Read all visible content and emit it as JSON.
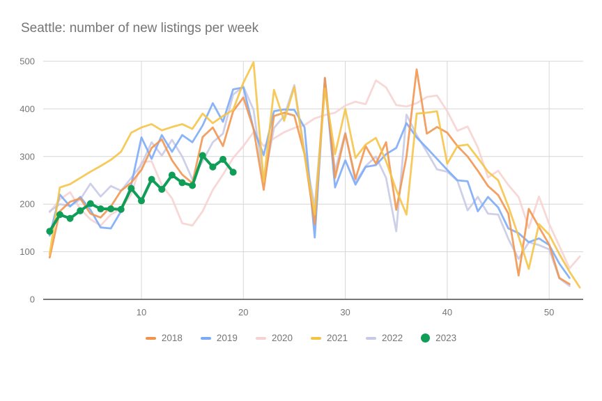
{
  "chart_data": {
    "type": "line",
    "title": "Seattle: number of new listings per week",
    "xlabel": "",
    "ylabel": "",
    "grid": true,
    "legend_position": "bottom",
    "x_axis": {
      "ticks": [
        10,
        20,
        30,
        40,
        50
      ],
      "range": [
        1,
        53
      ],
      "unit": "week"
    },
    "y_axis": {
      "ticks": [
        0,
        100,
        200,
        300,
        400,
        500
      ],
      "range": [
        0,
        500
      ]
    },
    "weeks_start_at": 1,
    "series": [
      {
        "name": "2018",
        "color": "#f0944d",
        "style": "line",
        "values": [
          88,
          185,
          205,
          212,
          180,
          172,
          195,
          228,
          245,
          272,
          318,
          336,
          292,
          262,
          244,
          341,
          361,
          322,
          395,
          424,
          358,
          230,
          385,
          392,
          386,
          305,
          158,
          465,
          255,
          348,
          253,
          322,
          285,
          330,
          188,
          300,
          483,
          348,
          362,
          350,
          322,
          300,
          270,
          238,
          219,
          180,
          50,
          190,
          152,
          115,
          45,
          32
        ]
      },
      {
        "name": "2019",
        "color": "#7baaf7",
        "style": "line",
        "values": [
          134,
          220,
          195,
          215,
          188,
          151,
          149,
          185,
          240,
          340,
          295,
          345,
          310,
          345,
          330,
          365,
          412,
          373,
          441,
          445,
          358,
          303,
          395,
          399,
          398,
          361,
          130,
          465,
          235,
          292,
          241,
          278,
          282,
          305,
          318,
          370,
          340,
          318,
          295,
          272,
          250,
          248,
          185,
          215,
          193,
          149,
          139,
          120,
          128,
          114,
          75,
          45
        ]
      },
      {
        "name": "2020",
        "color": "#f6d3d0",
        "style": "line",
        "values": [
          183,
          210,
          225,
          190,
          168,
          155,
          178,
          190,
          220,
          288,
          290,
          240,
          212,
          160,
          155,
          185,
          230,
          262,
          297,
          322,
          351,
          322,
          338,
          351,
          360,
          366,
          380,
          387,
          392,
          407,
          415,
          410,
          460,
          445,
          408,
          405,
          412,
          425,
          428,
          395,
          354,
          363,
          319,
          256,
          270,
          240,
          215,
          150,
          216,
          158,
          112,
          65,
          90
        ]
      },
      {
        "name": "2021",
        "color": "#f5c344",
        "style": "line",
        "values": [
          95,
          235,
          242,
          255,
          268,
          280,
          293,
          310,
          350,
          361,
          368,
          355,
          362,
          368,
          358,
          390,
          370,
          385,
          398,
          455,
          498,
          247,
          440,
          375,
          446,
          303,
          178,
          443,
          305,
          400,
          297,
          325,
          339,
          290,
          230,
          178,
          390,
          392,
          395,
          285,
          322,
          325,
          297,
          268,
          250,
          195,
          132,
          64,
          158,
          136,
          95,
          58,
          25
        ]
      },
      {
        "name": "2022",
        "color": "#c7cae6",
        "style": "line",
        "values": [
          185,
          200,
          196,
          210,
          243,
          216,
          238,
          228,
          255,
          283,
          330,
          302,
          335,
          300,
          252,
          290,
          330,
          348,
          430,
          447,
          398,
          246,
          360,
          385,
          450,
          310,
          195,
          445,
          270,
          350,
          246,
          280,
          300,
          255,
          143,
          388,
          345,
          310,
          273,
          268,
          249,
          187,
          215,
          180,
          178,
          127,
          85,
          120,
          114,
          105,
          44,
          28
        ]
      },
      {
        "name": "2023",
        "color": "#0f9d58",
        "style": "line+points",
        "values": [
          143,
          178,
          170,
          186,
          201,
          190,
          190,
          189,
          233,
          207,
          252,
          231,
          261,
          245,
          239,
          302,
          278,
          294,
          267
        ]
      }
    ]
  },
  "styles": {
    "title_color": "#757575",
    "tick_label_color": "#757575",
    "gridline_color": "#d6d6d6",
    "axis_line_color": "#777777",
    "background": "#ffffff"
  }
}
